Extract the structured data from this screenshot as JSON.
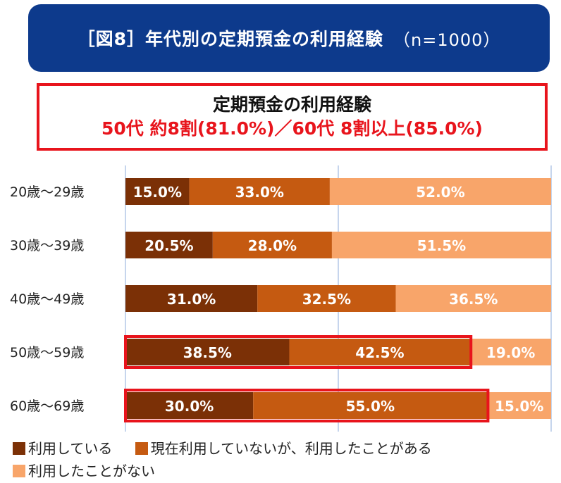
{
  "header": {
    "title": "［図8］年代別の定期預金の利用経験",
    "sample": "（n=1000）"
  },
  "highlight": {
    "line1": "定期預金の利用経験",
    "line2": "50代 約8割(81.0%)／60代 8割以上(85.0%)"
  },
  "colors": {
    "series1": "#7b3006",
    "series2": "#c55a11",
    "series3": "#f8a56a",
    "highlight": "#e8141c",
    "grid": "#b4c7e7"
  },
  "chart_data": {
    "type": "bar",
    "orientation": "horizontal",
    "stacked": true,
    "categories": [
      "20歳～29歳",
      "30歳～39歳",
      "40歳～49歳",
      "50歳～59歳",
      "60歳～69歳"
    ],
    "series": [
      {
        "name": "利用している",
        "values": [
          15.0,
          20.5,
          31.0,
          38.5,
          30.0
        ]
      },
      {
        "name": "現在利用していないが、利用したことがある",
        "values": [
          33.0,
          28.0,
          32.5,
          42.5,
          55.0
        ]
      },
      {
        "name": "利用したことがない",
        "values": [
          52.0,
          51.5,
          36.5,
          19.0,
          15.0
        ]
      }
    ],
    "value_format": "0.0%",
    "xlim": [
      0,
      100
    ],
    "highlighted_categories": [
      "50歳～59歳",
      "60歳～69歳"
    ],
    "legend": [
      "利用している",
      "現在利用していないが、利用したことがある",
      "利用したことがない"
    ]
  }
}
